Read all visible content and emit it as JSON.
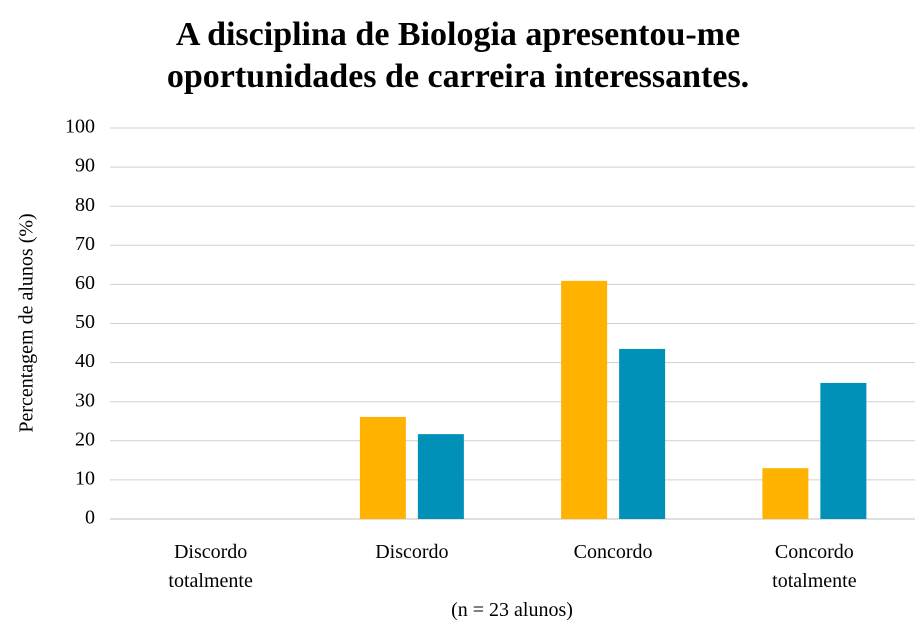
{
  "chart_data": {
    "type": "bar",
    "title": "A disciplina de Biologia apresentou-me oportunidades de carreira interessantes.",
    "y_label": "Percentagem de alunos (%)",
    "x_label": "(n = 23 alunos)",
    "categories": [
      "Discordo totalmente",
      "Discordo",
      "Concordo",
      "Concordo totalmente"
    ],
    "series": [
      {
        "color": "#FFB300",
        "values": [
          0,
          26.1,
          60.9,
          13.0
        ]
      },
      {
        "color": "#0090B8",
        "values": [
          0,
          21.7,
          43.5,
          34.8
        ]
      }
    ],
    "ylim": [
      0,
      100
    ],
    "yticks": [
      0,
      10,
      20,
      30,
      40,
      50,
      60,
      70,
      80,
      90,
      100
    ],
    "grid": true
  }
}
